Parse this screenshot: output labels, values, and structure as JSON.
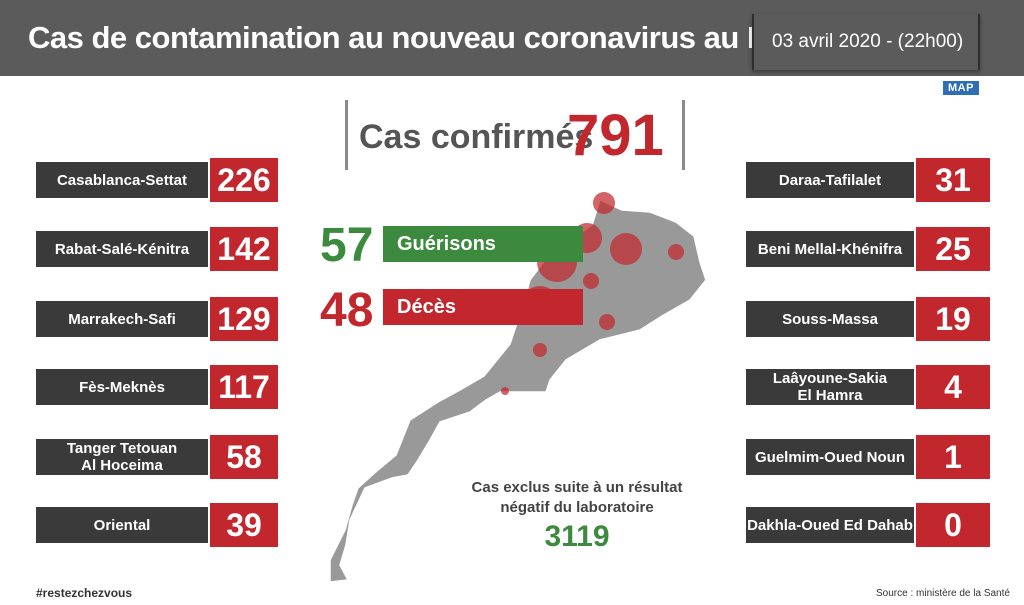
{
  "header": {
    "title": "Cas de contamination au nouveau coronavirus au Maroc",
    "date": "03 avril 2020  - (22h00)"
  },
  "logo": "MAP",
  "confirmed": {
    "label": "Cas confirmés",
    "value": "791"
  },
  "recovered": {
    "value": "57",
    "label": "Guérisons",
    "color": "#3b8a3e"
  },
  "deaths": {
    "value": "48",
    "label": "Décès",
    "color": "#c1272d"
  },
  "regions_left": [
    {
      "name": "Casablanca-Settat",
      "value": "226"
    },
    {
      "name": "Rabat-Salé-Kénitra",
      "value": "142"
    },
    {
      "name": "Marrakech-Safi",
      "value": "129"
    },
    {
      "name": "Fès-Meknès",
      "value": "117"
    },
    {
      "name": "Tanger Tetouan\nAl Hoceima",
      "value": "58"
    },
    {
      "name": "Oriental",
      "value": "39"
    }
  ],
  "regions_right": [
    {
      "name": "Daraa-Tafilalet",
      "value": "31"
    },
    {
      "name": "Beni Mellal-Khénifra",
      "value": "25"
    },
    {
      "name": "Souss-Massa",
      "value": "19"
    },
    {
      "name": "Laâyoune-Sakia\nEl Hamra",
      "value": "4"
    },
    {
      "name": "Guelmim-Oued Noun",
      "value": "1"
    },
    {
      "name": "Dakhla-Oued Ed Dahab",
      "value": "0"
    }
  ],
  "excluded": {
    "label": "Cas exclus suite à un résultat négatif du laboratoire",
    "value": "3119"
  },
  "hashtag": "#restezchezvous",
  "source": "Source : ministère de la Santé",
  "colors": {
    "header": "#5b5b5b",
    "label_bg": "#3a3a3a",
    "accent_red": "#c1272d",
    "accent_green": "#3b8a3e",
    "map_fill": "#999999"
  }
}
